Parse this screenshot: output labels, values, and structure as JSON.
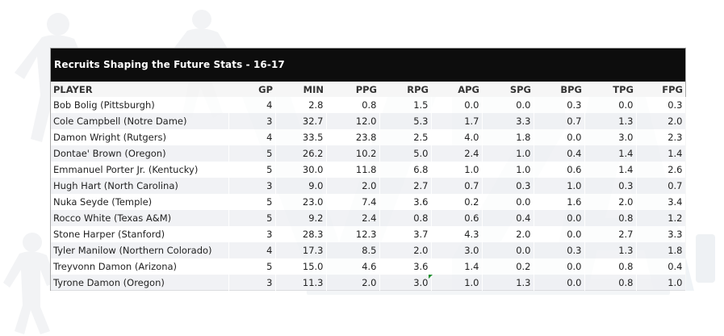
{
  "table": {
    "title": "Recruits Shaping the Future Stats - 16-17",
    "columns": [
      "PLAYER",
      "GP",
      "MIN",
      "PPG",
      "RPG",
      "APG",
      "SPG",
      "BPG",
      "TPG",
      "FPG"
    ],
    "rows": [
      [
        "Bob Bolig (Pittsburgh)",
        "4",
        "2.8",
        "0.8",
        "1.5",
        "0.0",
        "0.0",
        "0.3",
        "0.0",
        "0.3"
      ],
      [
        "Cole Campbell (Notre Dame)",
        "3",
        "32.7",
        "12.0",
        "5.3",
        "1.7",
        "3.3",
        "0.7",
        "1.3",
        "2.0"
      ],
      [
        "Damon Wright (Rutgers)",
        "4",
        "33.5",
        "23.8",
        "2.5",
        "4.0",
        "1.8",
        "0.0",
        "3.0",
        "2.3"
      ],
      [
        "Dontae' Brown (Oregon)",
        "5",
        "26.2",
        "10.2",
        "5.0",
        "2.4",
        "1.0",
        "0.4",
        "1.4",
        "1.4"
      ],
      [
        "Emmanuel Porter Jr. (Kentucky)",
        "5",
        "30.0",
        "11.8",
        "6.8",
        "1.0",
        "1.0",
        "0.6",
        "1.4",
        "2.6"
      ],
      [
        "Hugh Hart (North Carolina)",
        "3",
        "9.0",
        "2.0",
        "2.7",
        "0.7",
        "0.3",
        "1.0",
        "0.3",
        "0.7"
      ],
      [
        "Nuka Seyde (Temple)",
        "5",
        "23.0",
        "7.4",
        "3.6",
        "0.2",
        "0.0",
        "1.6",
        "2.0",
        "3.4"
      ],
      [
        "Rocco White (Texas A&M)",
        "5",
        "9.2",
        "2.4",
        "0.8",
        "0.6",
        "0.4",
        "0.0",
        "0.8",
        "1.2"
      ],
      [
        "Stone Harper (Stanford)",
        "3",
        "28.3",
        "12.3",
        "3.7",
        "4.3",
        "2.0",
        "0.0",
        "2.7",
        "3.3"
      ],
      [
        "Tyler Manilow (Northern Colorado)",
        "4",
        "17.3",
        "8.5",
        "2.0",
        "3.0",
        "0.0",
        "0.3",
        "1.3",
        "1.8"
      ],
      [
        "Treyvonn Damon (Arizona)",
        "5",
        "15.0",
        "4.6",
        "3.6",
        "1.4",
        "0.2",
        "0.0",
        "0.8",
        "0.4"
      ],
      [
        "Tyrone Damon (Oregon)",
        "3",
        "11.3",
        "2.0",
        "3.0",
        "1.0",
        "1.3",
        "0.0",
        "0.8",
        "1.0"
      ]
    ]
  },
  "colors": {
    "title_bg": "#0d0d0d",
    "title_text": "#ffffff",
    "row_alt": "#eceef1",
    "border": "#a7a7a7",
    "cell_marker": "#1f8f2f"
  }
}
